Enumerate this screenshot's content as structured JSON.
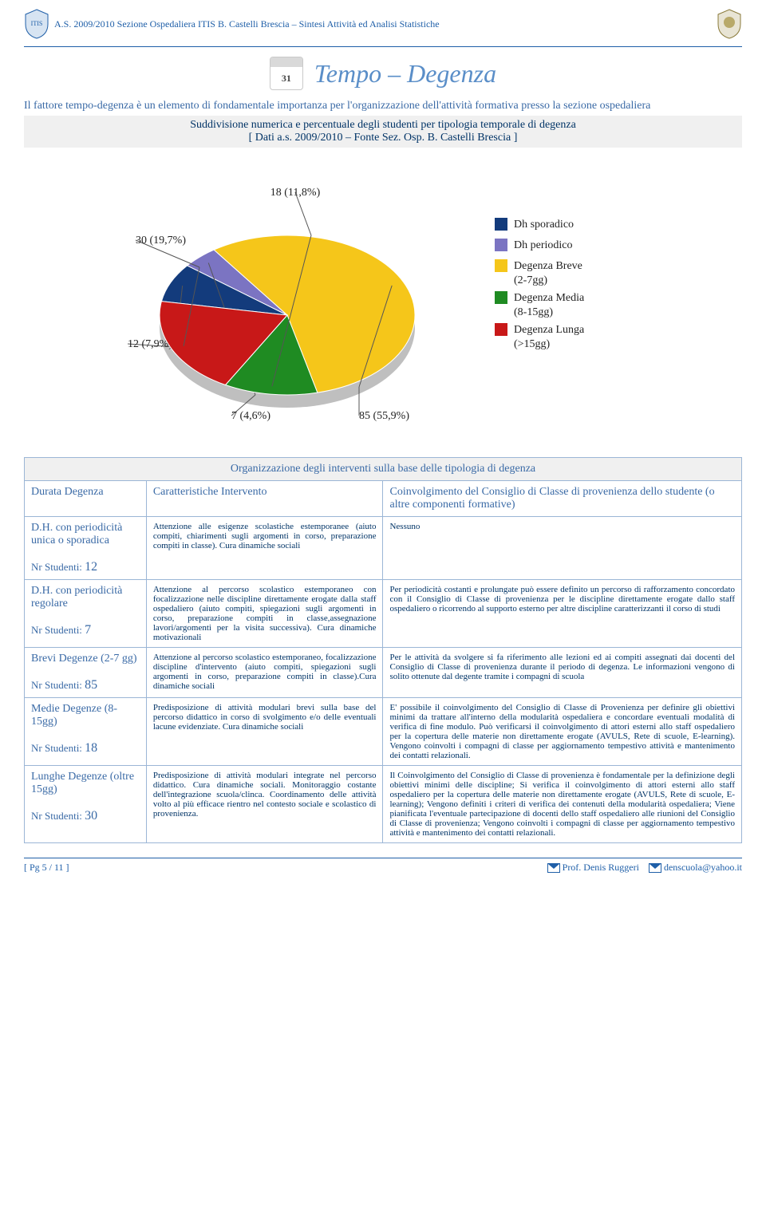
{
  "header": {
    "text": "A.S. 2009/2010 Sezione Ospedaliera ITIS B. Castelli Brescia – Sintesi Attività ed Analisi Statistiche",
    "calendar_day": "31"
  },
  "title": "Tempo – Degenza",
  "intro": "Il fattore tempo-degenza è un elemento di fondamentale importanza per l'organizzazione dell'attività formativa presso la sezione ospedaliera",
  "subtitle": "Suddivisione numerica e percentuale degli studenti per tipologia temporale di degenza\n[ Dati a.s. 2009/2010 – Fonte Sez. Osp. B. Castelli Brescia ]",
  "chart": {
    "type": "pie",
    "slices": [
      {
        "label": "Dh sporadico",
        "value": 12,
        "pct": "7,9%",
        "color": "#133b7c",
        "callout": "12 (7,9%)"
      },
      {
        "label": "Dh periodico",
        "value": 7,
        "pct": "4,6%",
        "color": "#7b74c2",
        "callout": "7 (4,6%)"
      },
      {
        "label": "Degenza Breve (2-7gg)",
        "value": 85,
        "pct": "55,9%",
        "color": "#f5c61a",
        "callout": "85 (55,9%)"
      },
      {
        "label": "Degenza Media (8-15gg)",
        "value": 18,
        "pct": "11,8%",
        "color": "#1f8b22",
        "callout": "18 (11,8%)"
      },
      {
        "label": "Degenza Lunga (>15gg)",
        "value": 30,
        "pct": "19,7%",
        "color": "#c81818",
        "callout": "30 (19,7%)"
      }
    ],
    "legend": [
      {
        "label": "Dh sporadico",
        "color": "#133b7c"
      },
      {
        "label": "Dh periodico",
        "color": "#7b74c2"
      },
      {
        "label": "Degenza Breve (2-7gg)",
        "color": "#f5c61a",
        "multi": [
          "Degenza Breve",
          "(2-7gg)"
        ]
      },
      {
        "label": "Degenza Media (8-15gg)",
        "color": "#1f8b22",
        "multi": [
          "Degenza Media",
          "(8-15gg)"
        ]
      },
      {
        "label": "Degenza Lunga (>15gg)",
        "color": "#c81818",
        "multi": [
          "Degenza Lunga",
          "(>15gg)"
        ]
      }
    ],
    "background": "#ffffff",
    "label_fontsize": 14,
    "label_color": "#222222",
    "legend_fontsize": 14
  },
  "table": {
    "org_header": "Organizzazione degli interventi sulla base delle tipologia di degenza",
    "head_col1": "Durata Degenza",
    "head_col2": "Caratteristiche Intervento",
    "head_col3": "Coinvolgimento del Consiglio di Classe di provenienza dello studente (o altre componenti formative)",
    "rows": [
      {
        "cat": "D.H. con periodicità unica o sporadica",
        "nrLabel": "Nr Studenti: ",
        "nr": "12",
        "car": "Attenzione alle esigenze scolastiche estemporanee (aiuto compiti, chiarimenti sugli argomenti in corso, preparazione compiti in classe). Cura dinamiche sociali",
        "inv": "Nessuno"
      },
      {
        "cat": "D.H. con periodicità regolare",
        "nrLabel": "Nr Studenti: ",
        "nr": "7",
        "car": "Attenzione al percorso scolastico estemporaneo con focalizzazione nelle discipline direttamente erogate dalla staff ospedaliero (aiuto compiti, spiegazioni sugli argomenti in corso, preparazione compiti in classe,assegnazione lavori/argomenti per la visita successiva). Cura dinamiche motivazionali",
        "inv": "Per periodicità costanti e prolungate può essere definito un percorso di rafforzamento concordato con il Consiglio di Classe di provenienza per le discipline direttamente erogate dallo staff ospedaliero o ricorrendo al supporto esterno per altre discipline caratterizzanti il corso di studi"
      },
      {
        "cat": "Brevi Degenze (2-7 gg)",
        "nrLabel": "Nr Studenti: ",
        "nr": "85",
        "car": "Attenzione al percorso scolastico estemporaneo, focalizzazione discipline d'intervento (aiuto compiti, spiegazioni sugli argomenti in corso, preparazione compiti in classe).Cura dinamiche sociali",
        "inv": "Per le attività da svolgere si fa riferimento alle lezioni ed ai compiti assegnati dai docenti del Consiglio di Classe di provenienza durante il periodo di degenza. Le informazioni vengono di solito ottenute dal degente tramite i compagni di scuola"
      },
      {
        "cat": "Medie Degenze (8-15gg)",
        "nrLabel": "Nr Studenti: ",
        "nr": "18",
        "car": "Predisposizione di attività modulari brevi sulla base del percorso didattico in corso di svolgimento e/o delle eventuali lacune evidenziate. Cura dinamiche sociali",
        "inv": "E' possibile il coinvolgimento del Consiglio di Classe di Provenienza per definire gli obiettivi minimi da trattare all'interno della modularità ospedaliera e concordare eventuali modalità di verifica di fine modulo. Può verificarsi il coinvolgimento di attori esterni allo staff ospedaliero per la copertura delle materie non direttamente erogate (AVULS, Rete di scuole, E-learning). Vengono coinvolti i compagni di classe per aggiornamento tempestivo attività e mantenimento dei contatti relazionali."
      },
      {
        "cat": "Lunghe Degenze (oltre 15gg)",
        "nrLabel": "Nr Studenti: ",
        "nr": "30",
        "car": "Predisposizione di attività modulari integrate nel percorso didattico. Cura dinamiche sociali. Monitoraggio costante dell'integrazione scuola/clinca. Coordinamento delle attività volto al più efficace rientro nel contesto sociale e scolastico di provenienza.",
        "inv": "Il Coinvolgimento del Consiglio di Classe di provenienza è fondamentale per la definizione degli obiettivi minimi delle discipline; Si verifica il coinvolgimento di attori esterni allo staff ospedaliero per la copertura delle materie non direttamente erogate (AVULS, Rete di scuole, E-learning); Vengono definiti i criteri di verifica dei contenuti della modularità ospedaliera; Viene pianificata l'eventuale partecipazione di docenti dello staff ospedaliero alle riunioni del Consiglio di Classe di provenienza; Vengono coinvolti i compagni di classe per aggiornamento tempestivo attività e mantenimento dei contatti relazionali."
      }
    ]
  },
  "footer": {
    "page": "[ Pg 5 / 11 ]",
    "author": "Prof. Denis Ruggeri",
    "email": "denscuola@yahoo.it"
  }
}
